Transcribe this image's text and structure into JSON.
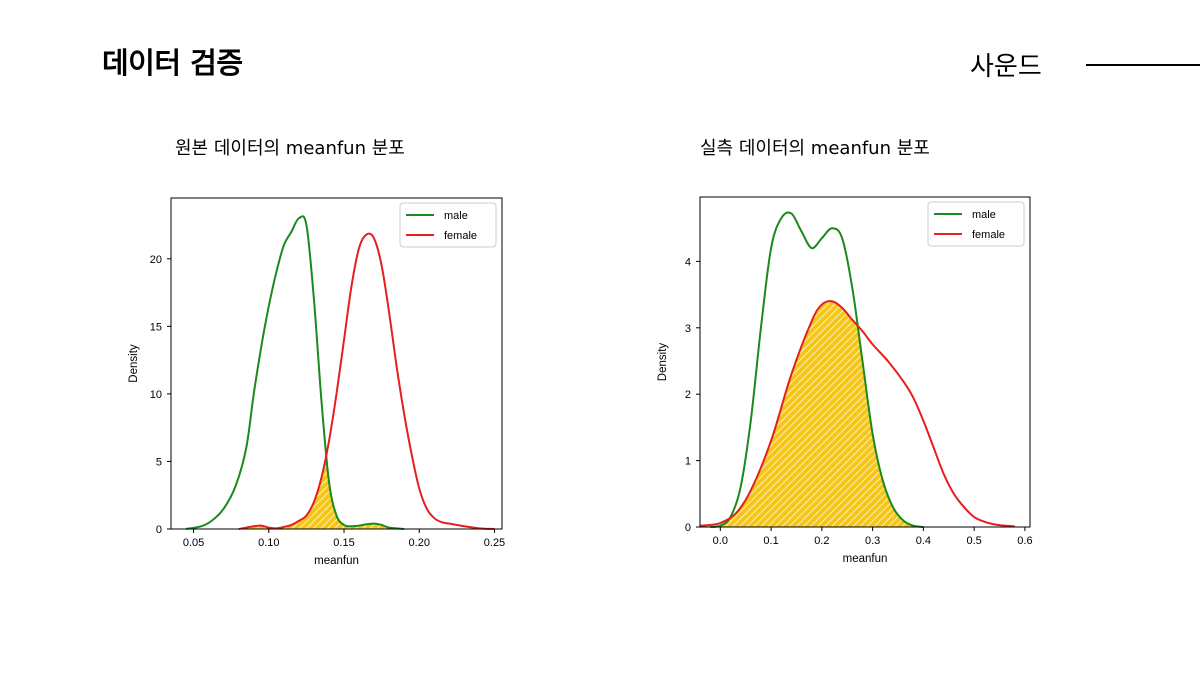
{
  "slide": {
    "title": "데이터 검증",
    "section": "사운드"
  },
  "panels": [
    {
      "caption": "원본 데이터의 meanfun 분포"
    },
    {
      "caption": "실측 데이터의 meanfun 분포"
    }
  ],
  "colors": {
    "male": "#1a8a1a",
    "female": "#e51f1f",
    "overlap_fill": "#f5c518",
    "overlap_hatch": "#ffffff",
    "axis": "#000000"
  },
  "chart_data": [
    {
      "type": "line",
      "subtype": "kde-density",
      "title": "",
      "xlabel": "meanfun",
      "ylabel": "Density",
      "xlim": [
        0.035,
        0.255
      ],
      "ylim": [
        0,
        24.5
      ],
      "xticks": [
        0.05,
        0.1,
        0.15,
        0.2,
        0.25
      ],
      "xtick_labels": [
        "0.05",
        "0.10",
        "0.15",
        "0.20",
        "0.25"
      ],
      "yticks": [
        0,
        5,
        10,
        15,
        20
      ],
      "ytick_labels": [
        "0",
        "5",
        "10",
        "15",
        "20"
      ],
      "grid": false,
      "legend": "top-right",
      "overlap_shading": "yellow-hatched",
      "series": [
        {
          "name": "male",
          "x": [
            0.045,
            0.055,
            0.062,
            0.07,
            0.078,
            0.085,
            0.09,
            0.095,
            0.1,
            0.105,
            0.11,
            0.115,
            0.12,
            0.125,
            0.13,
            0.135,
            0.14,
            0.145,
            0.15,
            0.155,
            0.16,
            0.165,
            0.17,
            0.175,
            0.18,
            0.19
          ],
          "y": [
            0.0,
            0.2,
            0.6,
            1.5,
            3.2,
            6.0,
            10.0,
            13.5,
            16.5,
            19.0,
            21.0,
            22.0,
            23.0,
            22.5,
            17.0,
            9.5,
            3.5,
            1.0,
            0.3,
            0.2,
            0.25,
            0.35,
            0.4,
            0.3,
            0.1,
            0.0
          ]
        },
        {
          "name": "female",
          "x": [
            0.08,
            0.09,
            0.095,
            0.1,
            0.105,
            0.11,
            0.115,
            0.12,
            0.125,
            0.13,
            0.135,
            0.14,
            0.145,
            0.15,
            0.155,
            0.16,
            0.165,
            0.17,
            0.175,
            0.18,
            0.185,
            0.19,
            0.195,
            0.2,
            0.205,
            0.21,
            0.215,
            0.22,
            0.23,
            0.24,
            0.25
          ],
          "y": [
            0.0,
            0.2,
            0.25,
            0.1,
            0.05,
            0.15,
            0.3,
            0.6,
            1.0,
            2.0,
            3.8,
            6.5,
            10.0,
            14.0,
            18.0,
            20.8,
            21.8,
            21.5,
            19.5,
            16.0,
            12.0,
            8.5,
            5.5,
            3.0,
            1.5,
            0.8,
            0.5,
            0.4,
            0.2,
            0.05,
            0.0
          ]
        }
      ]
    },
    {
      "type": "line",
      "subtype": "kde-density",
      "title": "",
      "xlabel": "meanfun",
      "ylabel": "Density",
      "xlim": [
        -0.04,
        0.61
      ],
      "ylim": [
        0,
        4.97
      ],
      "xticks": [
        0.0,
        0.1,
        0.2,
        0.3,
        0.4,
        0.5,
        0.6
      ],
      "xtick_labels": [
        "0.0",
        "0.1",
        "0.2",
        "0.3",
        "0.4",
        "0.5",
        "0.6"
      ],
      "yticks": [
        0,
        1,
        2,
        3,
        4
      ],
      "ytick_labels": [
        "0",
        "1",
        "2",
        "3",
        "4"
      ],
      "grid": false,
      "legend": "top-right",
      "overlap_shading": "yellow-hatched",
      "series": [
        {
          "name": "male",
          "x": [
            -0.02,
            0.0,
            0.02,
            0.04,
            0.06,
            0.08,
            0.1,
            0.12,
            0.14,
            0.16,
            0.18,
            0.2,
            0.22,
            0.24,
            0.26,
            0.28,
            0.3,
            0.32,
            0.34,
            0.36,
            0.38,
            0.4
          ],
          "y": [
            0.0,
            0.02,
            0.15,
            0.6,
            1.6,
            3.0,
            4.2,
            4.65,
            4.72,
            4.45,
            4.2,
            4.35,
            4.5,
            4.35,
            3.6,
            2.5,
            1.4,
            0.7,
            0.3,
            0.1,
            0.02,
            0.0
          ]
        },
        {
          "name": "female",
          "x": [
            -0.04,
            -0.02,
            0.0,
            0.03,
            0.06,
            0.1,
            0.14,
            0.18,
            0.2,
            0.22,
            0.24,
            0.26,
            0.28,
            0.3,
            0.33,
            0.36,
            0.38,
            0.4,
            0.42,
            0.44,
            0.46,
            0.48,
            0.5,
            0.52,
            0.54,
            0.56,
            0.58
          ],
          "y": [
            0.02,
            0.03,
            0.06,
            0.2,
            0.55,
            1.3,
            2.3,
            3.1,
            3.35,
            3.4,
            3.3,
            3.12,
            2.95,
            2.75,
            2.5,
            2.2,
            1.95,
            1.6,
            1.2,
            0.8,
            0.5,
            0.3,
            0.15,
            0.08,
            0.04,
            0.02,
            0.01
          ]
        }
      ]
    }
  ]
}
